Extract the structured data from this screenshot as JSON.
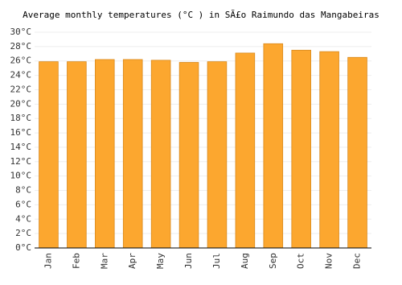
{
  "chart_data": {
    "type": "bar",
    "title": "Average monthly temperatures (°C ) in SÃ£o Raimundo das Mangabeiras",
    "categories": [
      "Jan",
      "Feb",
      "Mar",
      "Apr",
      "May",
      "Jun",
      "Jul",
      "Aug",
      "Sep",
      "Oct",
      "Nov",
      "Dec"
    ],
    "values": [
      25.9,
      25.9,
      26.2,
      26.2,
      26.1,
      25.8,
      25.9,
      27.1,
      28.4,
      27.5,
      27.3,
      26.5
    ],
    "color": "#fca72f",
    "ylim": [
      0,
      30
    ],
    "yticks": [
      {
        "value": 0,
        "label": "0°C"
      },
      {
        "value": 2,
        "label": "2°C"
      },
      {
        "value": 4,
        "label": "4°C"
      },
      {
        "value": 6,
        "label": "6°C"
      },
      {
        "value": 8,
        "label": "8°C"
      },
      {
        "value": 10,
        "label": "10°C"
      },
      {
        "value": 12,
        "label": "12°C"
      },
      {
        "value": 14,
        "label": "14°C"
      },
      {
        "value": 16,
        "label": "16°C"
      },
      {
        "value": 18,
        "label": "18°C"
      },
      {
        "value": 20,
        "label": "20°C"
      },
      {
        "value": 22,
        "label": "22°C"
      },
      {
        "value": 24,
        "label": "24°C"
      },
      {
        "value": 26,
        "label": "26°C"
      },
      {
        "value": 28,
        "label": "28°C"
      },
      {
        "value": 30,
        "label": "30°C"
      }
    ],
    "grid": true
  }
}
